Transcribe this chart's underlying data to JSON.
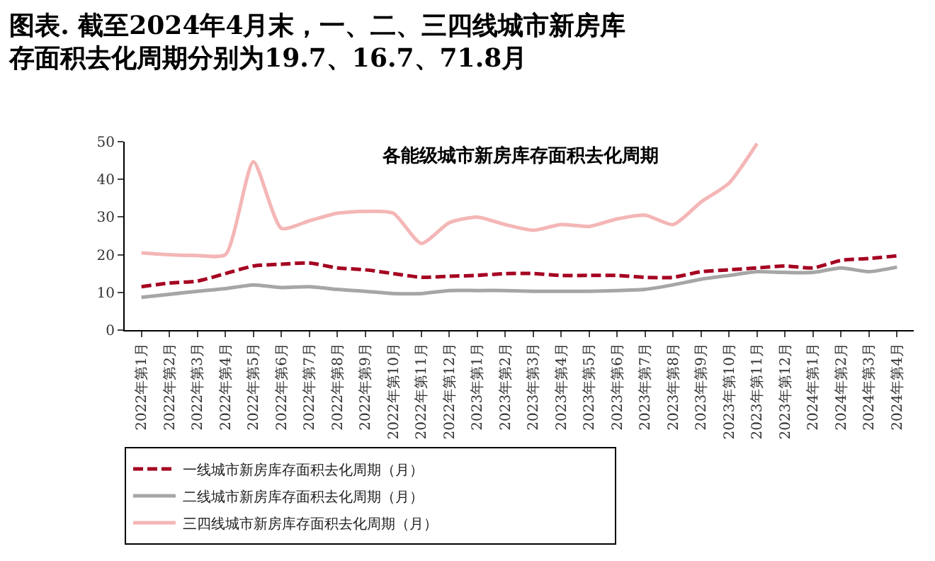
{
  "chart_data": {
    "type": "line",
    "title": "图表. 截至2024年4月末，一、二、三四线城市新房库存面积去化周期分别为19.7、16.7、71.8月",
    "subtitle": "各能级城市新房库存面积去化周期",
    "categories": [
      "2022年第1月",
      "2022年第2月",
      "2022年第3月",
      "2022年第4月",
      "2022年第5月",
      "2022年第6月",
      "2022年第7月",
      "2022年第8月",
      "2022年第9月",
      "2022年第10月",
      "2022年第11月",
      "2022年第12月",
      "2023年第1月",
      "2023年第2月",
      "2023年第3月",
      "2023年第4月",
      "2023年第5月",
      "2023年第6月",
      "2023年第7月",
      "2023年第8月",
      "2023年第9月",
      "2023年第10月",
      "2023年第11月",
      "2023年第12月",
      "2024年第1月",
      "2024年第2月",
      "2024年第3月",
      "2024年第4月"
    ],
    "series": [
      {
        "name": "一线城市新房库存面积去化周期（月）",
        "color": "#a50021",
        "line_style": "dashed",
        "values": [
          11.5,
          12.5,
          13,
          15,
          17,
          17.5,
          17.8,
          16.5,
          16,
          15,
          14,
          14.3,
          14.5,
          15,
          15,
          14.5,
          14.5,
          14.5,
          14,
          14,
          15.5,
          16,
          16.5,
          17,
          16.5,
          18.5,
          19,
          19.7
        ]
      },
      {
        "name": "二线城市新房库存面积去化周期（月）",
        "color": "#a6a6a6",
        "line_style": "solid",
        "values": [
          8.7,
          9.5,
          10.3,
          11,
          12,
          11.3,
          11.5,
          10.8,
          10.3,
          9.7,
          9.7,
          10.5,
          10.5,
          10.5,
          10.3,
          10.3,
          10.3,
          10.5,
          10.8,
          12,
          13.5,
          14.5,
          15.5,
          15.3,
          15.3,
          16.5,
          15.5,
          16.7
        ]
      },
      {
        "name": "三四线城市新房库存面积去化周期（月）",
        "color": "#f4b6b6",
        "line_style": "solid",
        "values": [
          20.5,
          20,
          19.8,
          20,
          44.7,
          27,
          29,
          31,
          31.5,
          31,
          23,
          28.5,
          30,
          28,
          26.5,
          28,
          27.5,
          29.5,
          30.5,
          28,
          34,
          39,
          49.5,
          null,
          null,
          null,
          null,
          null
        ]
      }
    ],
    "ylim": [
      0,
      50
    ],
    "yticks": [
      0,
      10,
      20,
      30,
      40,
      50
    ],
    "grid": false,
    "legend": "bottom",
    "marker": "none"
  }
}
